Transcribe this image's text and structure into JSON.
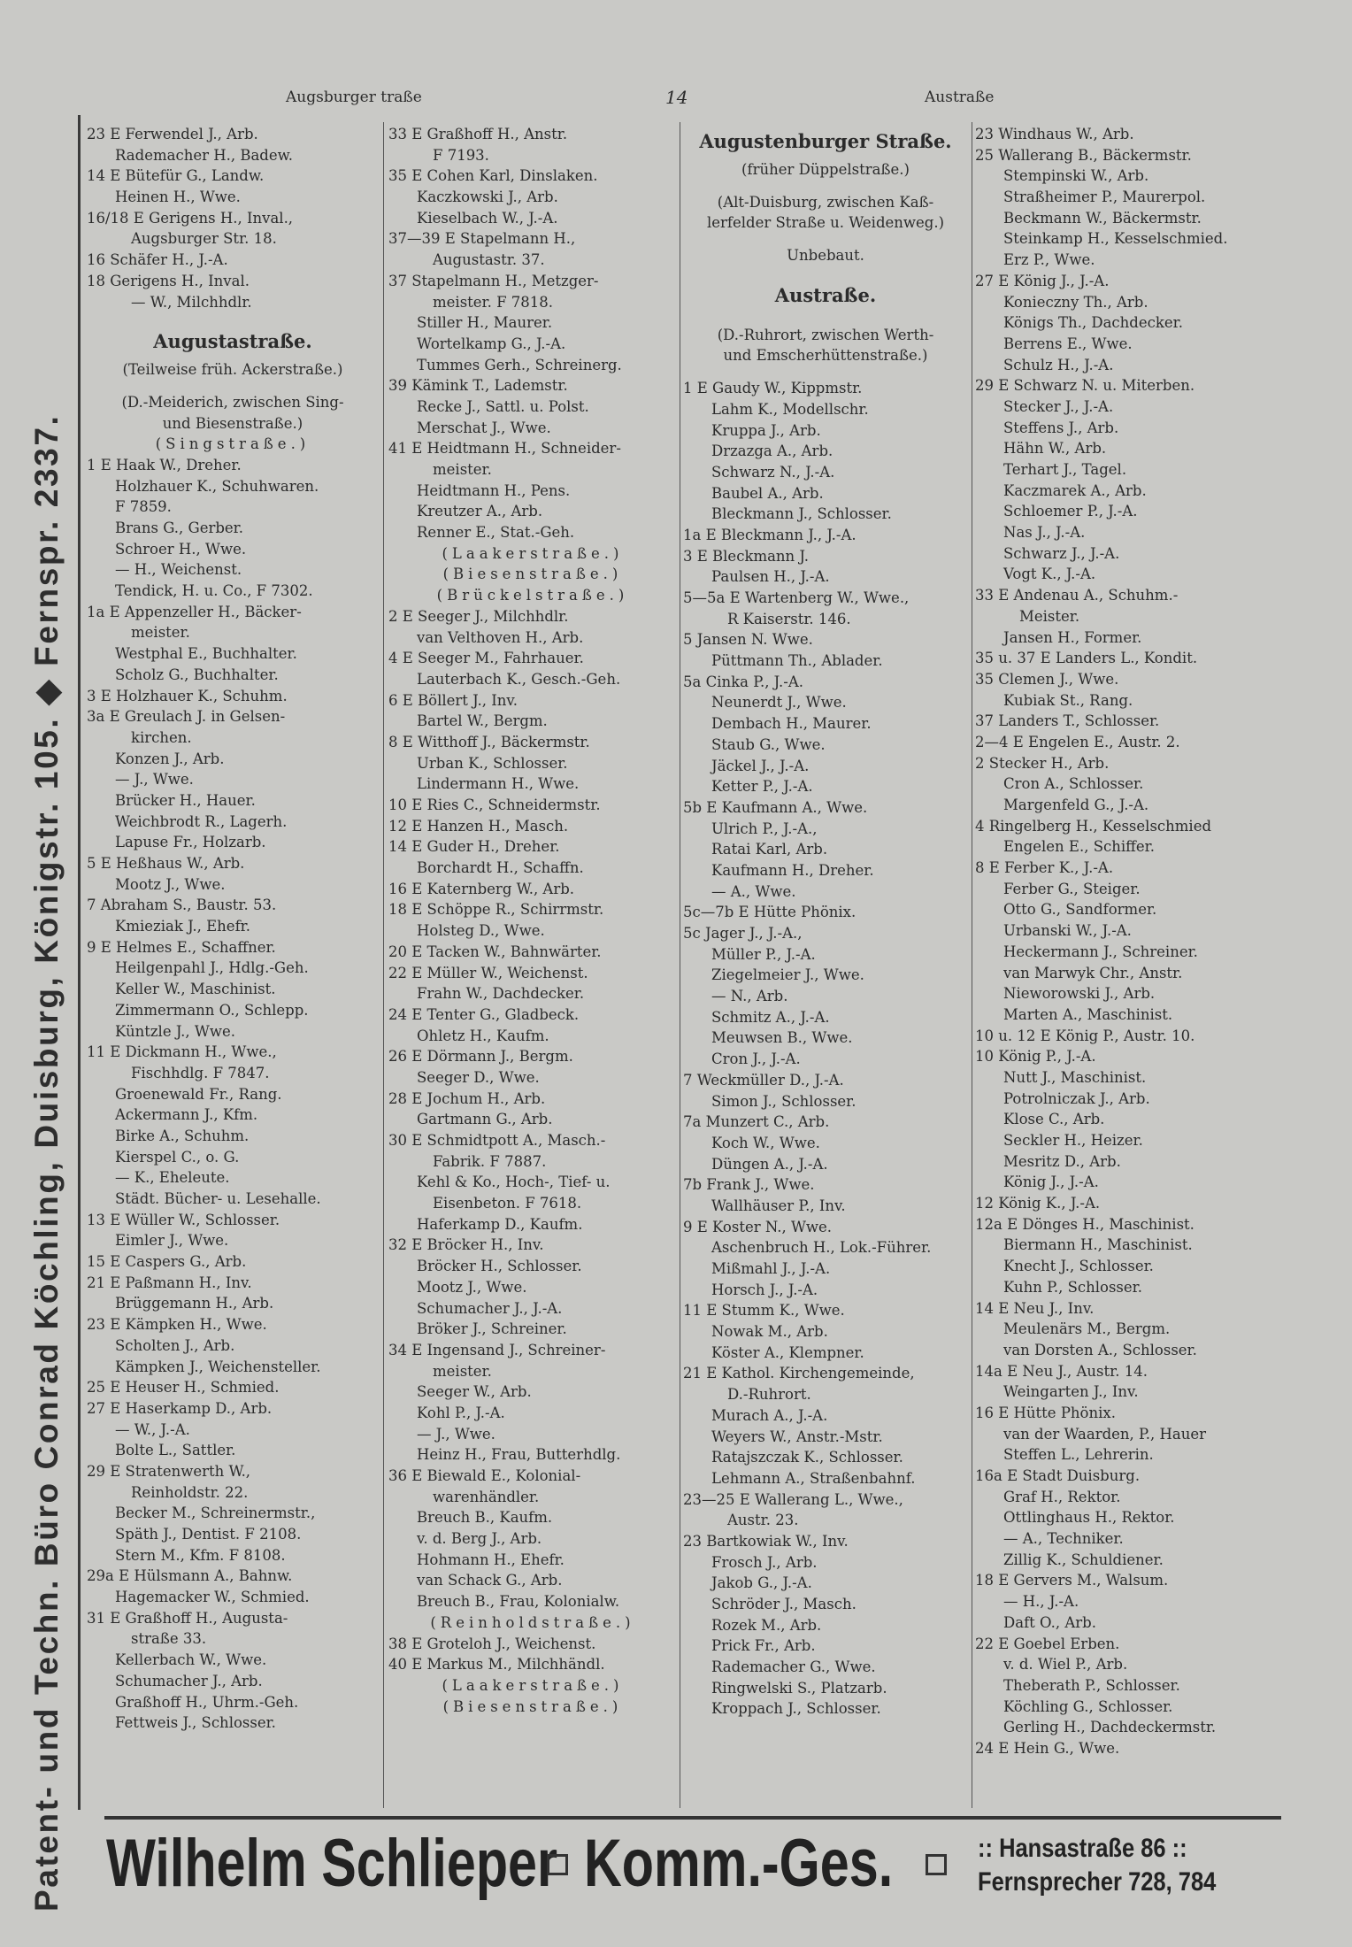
{
  "sidebar_text": "Patent- und Techn. Büro Conrad Köchling, Duisburg, Königstr. 105. ◆ Fernspr. 2337.",
  "header": {
    "left": "Augsburger   traße",
    "page_number": "14",
    "right": "Austraße"
  },
  "columns": [
    [
      [
        "0",
        "23 E Ferwendel J., Arb."
      ],
      [
        "1",
        "Rademacher H., Badew."
      ],
      [
        "0",
        "14 E Bütefür G., Landw."
      ],
      [
        "1",
        "Heinen H., Wwe."
      ],
      [
        "0",
        "16/18 E Gerigens H., Inval.,"
      ],
      [
        "2",
        "Augsburger Str. 18."
      ],
      [
        "0",
        "16 Schäfer H., J.-A."
      ],
      [
        "0",
        "18 Gerigens H., Inval."
      ],
      [
        "2",
        "— W., Milchhdlr."
      ],
      [
        "b",
        ""
      ],
      [
        "h",
        "Augustastraße."
      ],
      [
        "c",
        "(Teilweise früh. Ackerstraße.)"
      ],
      [
        "b",
        ""
      ],
      [
        "c",
        "(D.-Meiderich, zwischen Sing-"
      ],
      [
        "c",
        "und Biesenstraße.)"
      ],
      [
        "s",
        "(Singstraße.)"
      ],
      [
        "0",
        "1 E Haak W., Dreher."
      ],
      [
        "1",
        "Holzhauer K., Schuhwaren."
      ],
      [
        "1",
        "F 7859."
      ],
      [
        "1",
        "Brans G., Gerber."
      ],
      [
        "1",
        "Schroer H., Wwe."
      ],
      [
        "1",
        "— H., Weichenst."
      ],
      [
        "1",
        "Tendick, H. u. Co., F 7302."
      ],
      [
        "0",
        "1a E Appenzeller H., Bäcker-"
      ],
      [
        "2",
        "meister."
      ],
      [
        "1",
        "Westphal E., Buchhalter."
      ],
      [
        "1",
        "Scholz G., Buchhalter."
      ],
      [
        "0",
        "3 E Holzhauer K., Schuhm."
      ],
      [
        "0",
        "3a E Greulach J. in Gelsen-"
      ],
      [
        "2",
        "kirchen."
      ],
      [
        "1",
        "Konzen J., Arb."
      ],
      [
        "1",
        "— J., Wwe."
      ],
      [
        "1",
        "Brücker H., Hauer."
      ],
      [
        "1",
        "Weichbrodt R., Lagerh."
      ],
      [
        "1",
        "Lapuse Fr., Holzarb."
      ],
      [
        "0",
        "5 E Heßhaus W., Arb."
      ],
      [
        "1",
        "Mootz J., Wwe."
      ],
      [
        "0",
        "7 Abraham S., Baustr. 53."
      ],
      [
        "1",
        "Kmieziak J., Ehefr."
      ],
      [
        "0",
        "9 E Helmes E., Schaffner."
      ],
      [
        "1",
        "Heilgenpahl J., Hdlg.-Geh."
      ],
      [
        "1",
        "Keller W., Maschinist."
      ],
      [
        "1",
        "Zimmermann O., Schlepp."
      ],
      [
        "1",
        "Küntzle J., Wwe."
      ],
      [
        "0",
        "11 E Dickmann H., Wwe.,"
      ],
      [
        "2",
        "Fischhdlg.   F 7847."
      ],
      [
        "1",
        "Groenewald Fr., Rang."
      ],
      [
        "1",
        "Ackermann J., Kfm."
      ],
      [
        "1",
        "Birke A., Schuhm."
      ],
      [
        "1",
        "Kierspel C., o. G."
      ],
      [
        "1",
        "— K., Eheleute."
      ],
      [
        "1",
        "Städt. Bücher- u. Lesehalle."
      ],
      [
        "0",
        "13 E Wüller W., Schlosser."
      ],
      [
        "1",
        "Eimler J., Wwe."
      ],
      [
        "0",
        "15 E Caspers G., Arb."
      ],
      [
        "0",
        "21 E Paßmann H., Inv."
      ],
      [
        "1",
        "Brüggemann H., Arb."
      ],
      [
        "0",
        "23 E Kämpken H., Wwe."
      ],
      [
        "1",
        "Scholten J., Arb."
      ],
      [
        "1",
        "Kämpken J., Weichensteller."
      ],
      [
        "0",
        "25 E Heuser H., Schmied."
      ],
      [
        "0",
        "27 E Haserkamp D., Arb."
      ],
      [
        "1",
        "— W., J.-A."
      ],
      [
        "1",
        "Bolte L., Sattler."
      ],
      [
        "0",
        "29 E Stratenwerth W.,"
      ],
      [
        "2",
        "Reinholdstr. 22."
      ],
      [
        "1",
        "Becker M., Schreinermstr.,"
      ],
      [
        "1",
        "Späth J., Dentist. F 2108."
      ],
      [
        "1",
        "Stern M., Kfm.   F 8108."
      ],
      [
        "0",
        "29a E Hülsmann A., Bahnw."
      ],
      [
        "1",
        "Hagemacker W., Schmied."
      ],
      [
        "0",
        "31 E Graßhoff H., Augusta-"
      ],
      [
        "2",
        "straße 33."
      ],
      [
        "1",
        "Kellerbach W., Wwe."
      ],
      [
        "1",
        "Schumacher J., Arb."
      ],
      [
        "1",
        "Graßhoff H., Uhrm.-Geh."
      ],
      [
        "1",
        "Fettweis J., Schlosser."
      ]
    ],
    [
      [
        "0",
        "33 E Graßhoff H., Anstr."
      ],
      [
        "2",
        "F 7193."
      ],
      [
        "0",
        "35 E Cohen Karl, Dinslaken."
      ],
      [
        "1",
        "Kaczkowski J., Arb."
      ],
      [
        "1",
        "Kieselbach W., J.-A."
      ],
      [
        "0",
        "37—39 E Stapelmann H.,"
      ],
      [
        "2",
        "Augustastr. 37."
      ],
      [
        "0",
        "37 Stapelmann H., Metzger-"
      ],
      [
        "2",
        "meister.  F 7818."
      ],
      [
        "1",
        "Stiller H., Maurer."
      ],
      [
        "1",
        "Wortelkamp G., J.-A."
      ],
      [
        "1",
        "Tummes Gerh., Schreinerg."
      ],
      [
        "0",
        "39 Kämink T., Lademstr."
      ],
      [
        "1",
        "Recke J., Sattl. u. Polst."
      ],
      [
        "1",
        "Merschat J., Wwe."
      ],
      [
        "0",
        "41 E Heidtmann H., Schneider-"
      ],
      [
        "2",
        "meister."
      ],
      [
        "1",
        "Heidtmann H., Pens."
      ],
      [
        "1",
        "Kreutzer A., Arb."
      ],
      [
        "1",
        "Renner E., Stat.-Geh."
      ],
      [
        "s",
        "(Laakerstraße.)"
      ],
      [
        "s",
        "(Biesenstraße.)"
      ],
      [
        "s",
        "(Brückelstraße.)"
      ],
      [
        "0",
        "2 E Seeger J., Milchhdlr."
      ],
      [
        "1",
        "van Velthoven H., Arb."
      ],
      [
        "0",
        "4 E Seeger M., Fahrhauer."
      ],
      [
        "1",
        "Lauterbach K., Gesch.-Geh."
      ],
      [
        "0",
        "6 E Böllert J., Inv."
      ],
      [
        "1",
        "Bartel W., Bergm."
      ],
      [
        "0",
        "8 E Witthoff J., Bäckermstr."
      ],
      [
        "1",
        "Urban K., Schlosser."
      ],
      [
        "1",
        "Lindermann H., Wwe."
      ],
      [
        "0",
        "10 E Ries C., Schneidermstr."
      ],
      [
        "0",
        "12 E Hanzen H., Masch."
      ],
      [
        "0",
        "14 E Guder H., Dreher."
      ],
      [
        "1",
        "Borchardt H., Schaffn."
      ],
      [
        "0",
        "16 E Katernberg W., Arb."
      ],
      [
        "0",
        "18 E Schöppe R., Schirrmstr."
      ],
      [
        "1",
        "Holsteg D., Wwe."
      ],
      [
        "0",
        "20 E Tacken W., Bahnwärter."
      ],
      [
        "0",
        "22 E Müller W., Weichenst."
      ],
      [
        "1",
        "Frahn W., Dachdecker."
      ],
      [
        "0",
        "24 E Tenter G., Gladbeck."
      ],
      [
        "1",
        "Ohletz H., Kaufm."
      ],
      [
        "0",
        "26 E Dörmann J., Bergm."
      ],
      [
        "1",
        "Seeger D., Wwe."
      ],
      [
        "0",
        "28 E Jochum H., Arb."
      ],
      [
        "1",
        "Gartmann G., Arb."
      ],
      [
        "0",
        "30 E Schmidtpott A., Masch.-"
      ],
      [
        "2",
        "Fabrik.  F 7887."
      ],
      [
        "1",
        "Kehl & Ko., Hoch-, Tief- u."
      ],
      [
        "2",
        "Eisenbeton.  F 7618."
      ],
      [
        "1",
        "Haferkamp D., Kaufm."
      ],
      [
        "0",
        "32 E Bröcker H., Inv."
      ],
      [
        "1",
        "Bröcker H., Schlosser."
      ],
      [
        "1",
        "Mootz J., Wwe."
      ],
      [
        "1",
        "Schumacher J., J.-A."
      ],
      [
        "1",
        "Bröker J., Schreiner."
      ],
      [
        "0",
        "34 E Ingensand J., Schreiner-"
      ],
      [
        "2",
        "meister."
      ],
      [
        "1",
        "Seeger W., Arb."
      ],
      [
        "1",
        "Kohl P., J.-A."
      ],
      [
        "1",
        "— J., Wwe."
      ],
      [
        "1",
        "Heinz H., Frau, Butterhdlg."
      ],
      [
        "0",
        "36 E Biewald E., Kolonial-"
      ],
      [
        "2",
        "warenhändler."
      ],
      [
        "1",
        "Breuch B., Kaufm."
      ],
      [
        "1",
        "v. d. Berg J., Arb."
      ],
      [
        "1",
        "Hohmann H., Ehefr."
      ],
      [
        "1",
        "van Schack G., Arb."
      ],
      [
        "1",
        "Breuch B., Frau, Kolonialw."
      ],
      [
        "s",
        "(Reinholdstraße.)"
      ],
      [
        "0",
        "38 E Groteloh J., Weichenst."
      ],
      [
        "0",
        "40 E Markus M., Milchhändl."
      ],
      [
        "s",
        "(Laakerstraße.)"
      ],
      [
        "s",
        "(Biesenstraße.)"
      ]
    ],
    [
      [
        "h",
        "Augustenburger Straße."
      ],
      [
        "c",
        "(früher Düppelstraße.)"
      ],
      [
        "b",
        ""
      ],
      [
        "c",
        "(Alt-Duisburg, zwischen Kaß-"
      ],
      [
        "c",
        "lerfelder Straße u. Weidenweg.)"
      ],
      [
        "b",
        ""
      ],
      [
        "c",
        "Unbebaut."
      ],
      [
        "b",
        ""
      ],
      [
        "h",
        "Austraße."
      ],
      [
        "b",
        ""
      ],
      [
        "c",
        "(D.-Ruhrort, zwischen Werth-"
      ],
      [
        "c",
        "und Emscherhüttenstraße.)"
      ],
      [
        "b",
        ""
      ],
      [
        "0",
        "1 E Gaudy W., Kippmstr."
      ],
      [
        "1",
        "Lahm K., Modellschr."
      ],
      [
        "1",
        "Kruppa J., Arb."
      ],
      [
        "1",
        "Drzazga A., Arb."
      ],
      [
        "1",
        "Schwarz N., J.-A."
      ],
      [
        "1",
        "Baubel A., Arb."
      ],
      [
        "1",
        "Bleckmann J., Schlosser."
      ],
      [
        "0",
        "1a E Bleckmann J., J.-A."
      ],
      [
        "0",
        "3 E Bleckmann J."
      ],
      [
        "1",
        "Paulsen H., J.-A."
      ],
      [
        "0",
        "5—5a E Wartenberg W., Wwe.,"
      ],
      [
        "2",
        "R Kaiserstr. 146."
      ],
      [
        "0",
        "5 Jansen N. Wwe."
      ],
      [
        "1",
        "Püttmann Th., Ablader."
      ],
      [
        "0",
        "5a Cinka P., J.-A."
      ],
      [
        "1",
        "Neunerdt J., Wwe."
      ],
      [
        "1",
        "Dembach H., Maurer."
      ],
      [
        "1",
        "Staub G., Wwe."
      ],
      [
        "1",
        "Jäckel J., J.-A."
      ],
      [
        "1",
        "Ketter P., J.-A."
      ],
      [
        "0",
        "5b E Kaufmann A., Wwe."
      ],
      [
        "1",
        "Ulrich P., J.-A.,"
      ],
      [
        "1",
        "Ratai Karl, Arb."
      ],
      [
        "1",
        "Kaufmann H., Dreher."
      ],
      [
        "1",
        "— A., Wwe."
      ],
      [
        "0",
        "5c—7b E Hütte Phönix."
      ],
      [
        "0",
        "5c Jager J., J.-A.,"
      ],
      [
        "1",
        "Müller P., J.-A."
      ],
      [
        "1",
        "Ziegelmeier J., Wwe."
      ],
      [
        "1",
        "— N., Arb."
      ],
      [
        "1",
        "Schmitz A., J.-A."
      ],
      [
        "1",
        "Meuwsen B., Wwe."
      ],
      [
        "1",
        "Cron J., J.-A."
      ],
      [
        "0",
        "7 Weckmüller D., J.-A."
      ],
      [
        "1",
        "Simon J., Schlosser."
      ],
      [
        "0",
        "7a Munzert C., Arb."
      ],
      [
        "1",
        "Koch W., Wwe."
      ],
      [
        "1",
        "Düngen A., J.-A."
      ],
      [
        "0",
        "7b Frank J., Wwe."
      ],
      [
        "1",
        "Wallhäuser P., Inv."
      ],
      [
        "0",
        "9 E Koster N., Wwe."
      ],
      [
        "1",
        "Aschenbruch H., Lok.-Führer."
      ],
      [
        "1",
        "Mißmahl J., J.-A."
      ],
      [
        "1",
        "Horsch J., J.-A."
      ],
      [
        "0",
        "11 E Stumm K., Wwe."
      ],
      [
        "1",
        "Nowak M., Arb."
      ],
      [
        "1",
        "Köster A., Klempner."
      ],
      [
        "0",
        "21 E Kathol. Kirchengemeinde,"
      ],
      [
        "2",
        "D.-Ruhrort."
      ],
      [
        "1",
        "Murach A., J.-A."
      ],
      [
        "1",
        "Weyers W., Anstr.-Mstr."
      ],
      [
        "1",
        "Ratajszczak K., Schlosser."
      ],
      [
        "1",
        "Lehmann A., Straßenbahnf."
      ],
      [
        "0",
        "23—25 E Wallerang L., Wwe.,"
      ],
      [
        "2",
        "Austr. 23."
      ],
      [
        "0",
        "23 Bartkowiak W., Inv."
      ],
      [
        "1",
        "Frosch J., Arb."
      ],
      [
        "1",
        "Jakob G., J.-A."
      ],
      [
        "1",
        "Schröder J., Masch."
      ],
      [
        "1",
        "Rozek M., Arb."
      ],
      [
        "1",
        "Prick Fr., Arb."
      ],
      [
        "1",
        "Rademacher G., Wwe."
      ],
      [
        "1",
        "Ringwelski S., Platzarb."
      ],
      [
        "1",
        "Kroppach J., Schlosser."
      ]
    ],
    [
      [
        "0",
        "23 Windhaus W., Arb."
      ],
      [
        "0",
        "25 Wallerang B., Bäckermstr."
      ],
      [
        "1",
        "Stempinski W., Arb."
      ],
      [
        "1",
        "Straßheimer P., Maurerpol."
      ],
      [
        "1",
        "Beckmann W., Bäckermstr."
      ],
      [
        "1",
        "Steinkamp H., Kesselschmied."
      ],
      [
        "1",
        "Erz P., Wwe."
      ],
      [
        "0",
        "27 E König J., J.-A."
      ],
      [
        "1",
        "Konieczny Th., Arb."
      ],
      [
        "1",
        "Königs Th., Dachdecker."
      ],
      [
        "1",
        "Berrens E., Wwe."
      ],
      [
        "1",
        "Schulz H., J.-A."
      ],
      [
        "0",
        "29 E Schwarz N. u. Miterben."
      ],
      [
        "1",
        "Stecker J., J.-A."
      ],
      [
        "1",
        "Steffens J., Arb."
      ],
      [
        "1",
        "Hähn W., Arb."
      ],
      [
        "1",
        "Terhart J., Tagel."
      ],
      [
        "1",
        "Kaczmarek A., Arb."
      ],
      [
        "1",
        "Schloemer P., J.-A."
      ],
      [
        "1",
        "Nas J., J.-A."
      ],
      [
        "1",
        "Schwarz J., J.-A."
      ],
      [
        "1",
        "Vogt K., J.-A."
      ],
      [
        "0",
        "33 E Andenau A., Schuhm.-"
      ],
      [
        "2",
        "Meister."
      ],
      [
        "1",
        "Jansen H., Former."
      ],
      [
        "0",
        "35 u. 37 E Landers L., Kondit."
      ],
      [
        "0",
        "35 Clemen J., Wwe."
      ],
      [
        "1",
        "Kubiak St., Rang."
      ],
      [
        "0",
        "37 Landers T., Schlosser."
      ],
      [
        "0",
        "2—4 E Engelen E., Austr. 2."
      ],
      [
        "0",
        "2 Stecker H., Arb."
      ],
      [
        "1",
        "Cron A., Schlosser."
      ],
      [
        "1",
        "Margenfeld G., J.-A."
      ],
      [
        "0",
        "4 Ringelberg H., Kesselschmied"
      ],
      [
        "1",
        "Engelen E., Schiffer."
      ],
      [
        "0",
        "8 E Ferber K., J.-A."
      ],
      [
        "1",
        "Ferber G., Steiger."
      ],
      [
        "1",
        "Otto G., Sandformer."
      ],
      [
        "1",
        "Urbanski W., J.-A."
      ],
      [
        "1",
        "Heckermann J., Schreiner."
      ],
      [
        "1",
        "van Marwyk Chr., Anstr."
      ],
      [
        "1",
        "Nieworowski J., Arb."
      ],
      [
        "1",
        "Marten A., Maschinist."
      ],
      [
        "0",
        "10 u. 12 E König P., Austr. 10."
      ],
      [
        "0",
        "10 König P., J.-A."
      ],
      [
        "1",
        "Nutt J., Maschinist."
      ],
      [
        "1",
        "Potrolniczak J., Arb."
      ],
      [
        "1",
        "Klose C., Arb."
      ],
      [
        "1",
        "Seckler H., Heizer."
      ],
      [
        "1",
        "Mesritz D., Arb."
      ],
      [
        "1",
        "König J., J.-A."
      ],
      [
        "0",
        "12 König K., J.-A."
      ],
      [
        "0",
        "12a E Dönges H., Maschinist."
      ],
      [
        "1",
        "Biermann H., Maschinist."
      ],
      [
        "1",
        "Knecht J., Schlosser."
      ],
      [
        "1",
        "Kuhn P., Schlosser."
      ],
      [
        "0",
        "14 E Neu J., Inv."
      ],
      [
        "1",
        "Meulenärs M., Bergm."
      ],
      [
        "1",
        "van Dorsten A., Schlosser."
      ],
      [
        "0",
        "14a E Neu J., Austr. 14."
      ],
      [
        "1",
        "Weingarten J., Inv."
      ],
      [
        "0",
        "16 E Hütte Phönix."
      ],
      [
        "1",
        "van der Waarden, P., Hauer"
      ],
      [
        "1",
        "Steffen L., Lehrerin."
      ],
      [
        "0",
        "16a E Stadt Duisburg."
      ],
      [
        "1",
        "Graf H., Rektor."
      ],
      [
        "1",
        "Ottlinghaus H., Rektor."
      ],
      [
        "1",
        "— A., Techniker."
      ],
      [
        "1",
        "Zillig K., Schuldiener."
      ],
      [
        "0",
        "18 E Gervers M., Walsum."
      ],
      [
        "1",
        "— H., J.-A."
      ],
      [
        "1",
        "Daft O., Arb."
      ],
      [
        "0",
        "22 E Goebel Erben."
      ],
      [
        "1",
        "v. d. Wiel P., Arb."
      ],
      [
        "1",
        "Theberath P., Schlosser."
      ],
      [
        "1",
        "Köchling G., Schlosser."
      ],
      [
        "1",
        "Gerling H., Dachdeckermstr."
      ],
      [
        "0",
        "24 E Hein G., Wwe."
      ]
    ]
  ],
  "advertisement": {
    "name": "Wilhelm Schlieper",
    "company": "Komm.-Ges.",
    "address": ":: Hansastraße 86 ::",
    "phone": "Fernsprecher 728, 784"
  }
}
